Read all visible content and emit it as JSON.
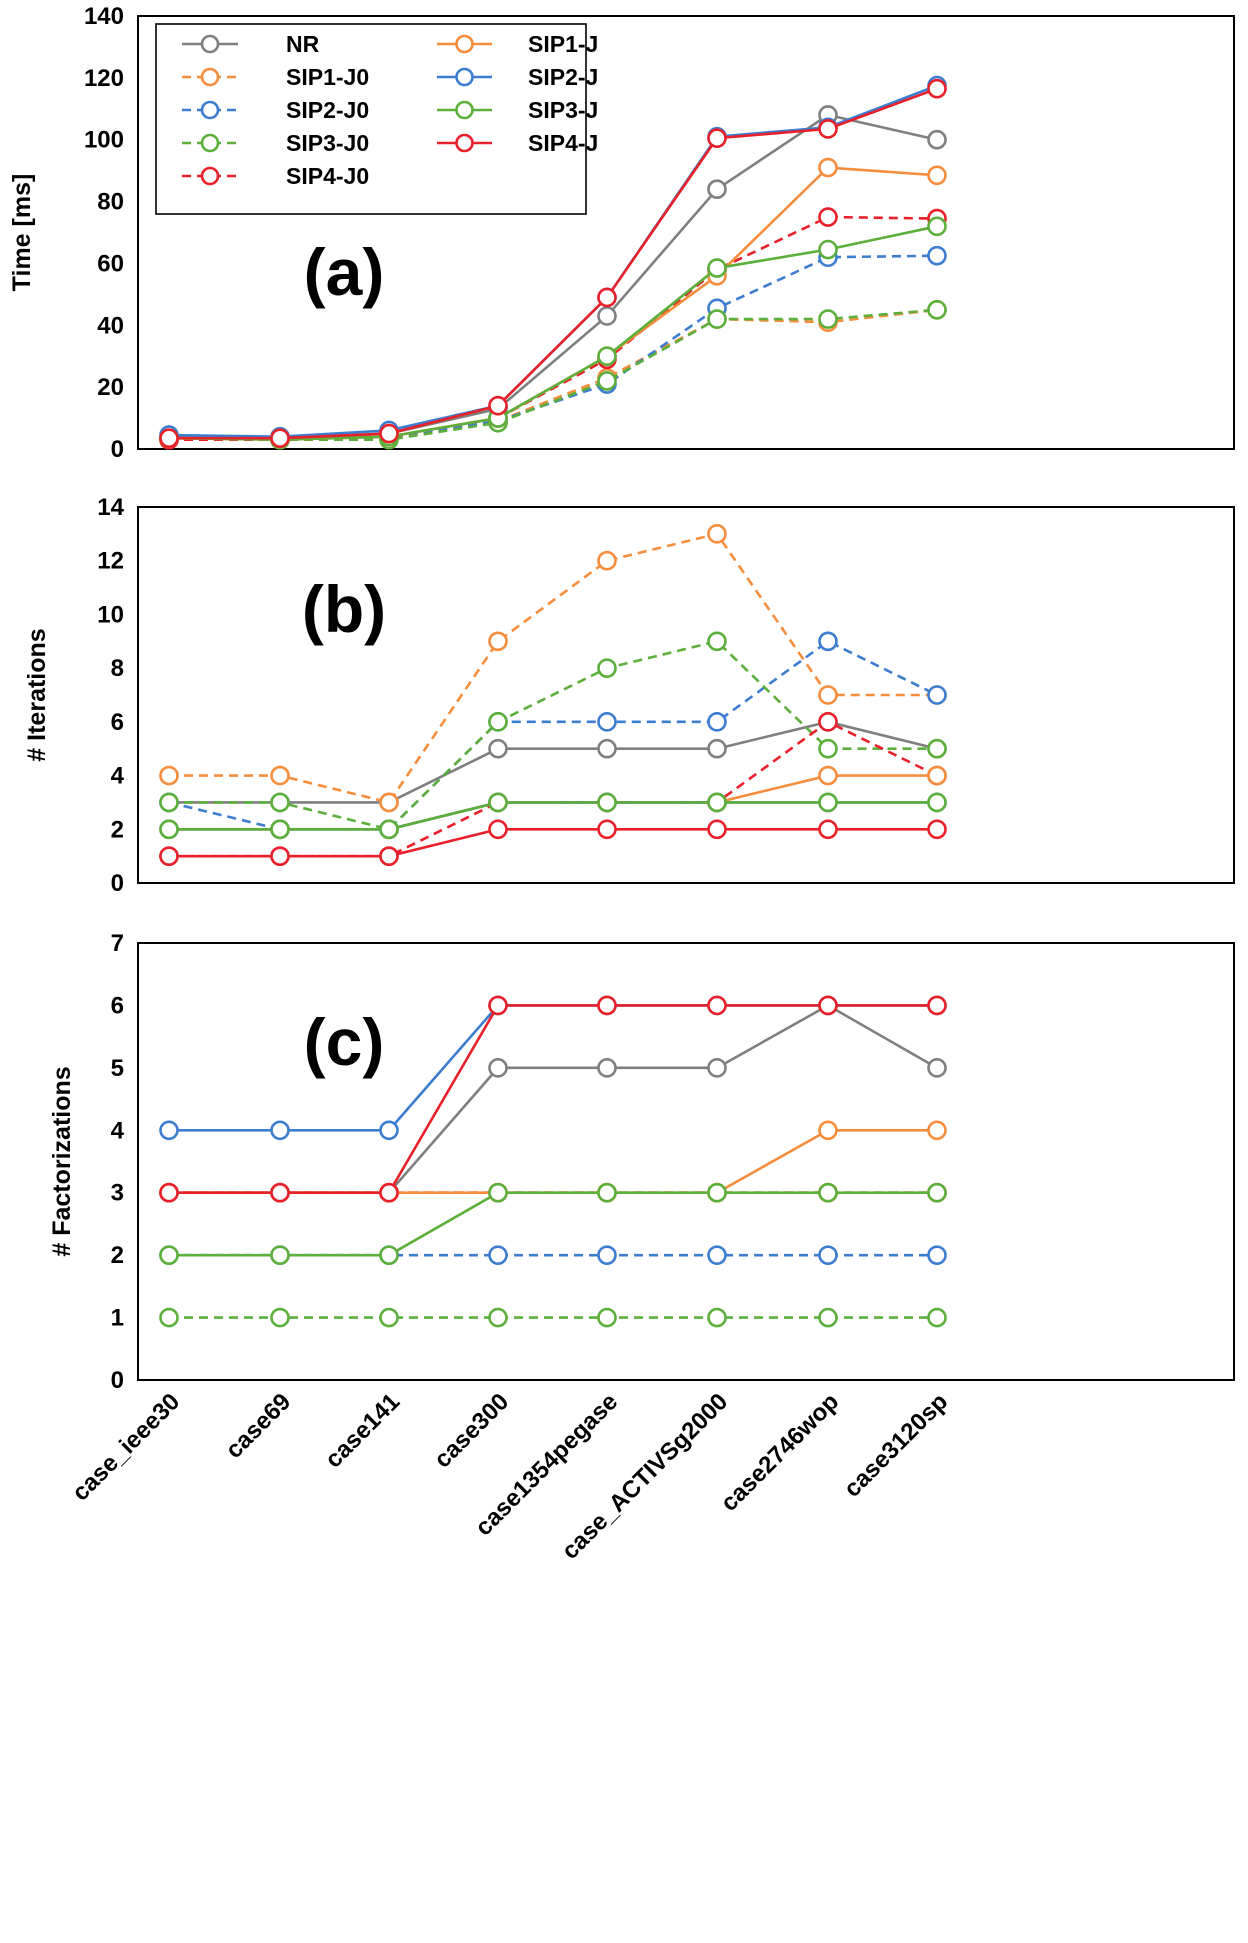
{
  "chart_data": {
    "type": "line",
    "categories": [
      "case_ieee30",
      "case69",
      "case141",
      "case300",
      "case1354pegase",
      "case_ACTIVSg2000",
      "case2746wop",
      "case3120sp"
    ],
    "series_styles": [
      {
        "name": "NR",
        "color": "#7f7f7f",
        "dashed": false
      },
      {
        "name": "SIP1-J0",
        "color": "#f58d3c",
        "dashed": true
      },
      {
        "name": "SIP2-J0",
        "color": "#3d7dd0",
        "dashed": true
      },
      {
        "name": "SIP3-J0",
        "color": "#5caf3b",
        "dashed": true
      },
      {
        "name": "SIP4-J0",
        "color": "#e8202a",
        "dashed": true
      },
      {
        "name": "SIP1-J",
        "color": "#f58d3c",
        "dashed": false
      },
      {
        "name": "SIP2-J",
        "color": "#3d7dd0",
        "dashed": false
      },
      {
        "name": "SIP3-J",
        "color": "#5caf3b",
        "dashed": false
      },
      {
        "name": "SIP4-J",
        "color": "#e8202a",
        "dashed": false
      }
    ],
    "legend": {
      "placement": "top-left",
      "left_column": [
        "NR",
        "SIP1-J0",
        "SIP2-J0",
        "SIP3-J0",
        "SIP4-J0"
      ],
      "right_column": [
        "SIP1-J",
        "SIP2-J",
        "SIP3-J",
        "SIP4-J"
      ]
    },
    "panels": [
      {
        "label": "(a)",
        "ylabel": "Time [ms]",
        "ylim": [
          0,
          140
        ],
        "yticks": [
          0,
          20,
          40,
          60,
          80,
          100,
          120,
          140
        ],
        "series": [
          {
            "name": "NR",
            "values": [
              4,
              3.5,
              5,
              13,
              43,
              84,
              108,
              100
            ]
          },
          {
            "name": "SIP1-J0",
            "values": [
              3,
              3,
              3.5,
              9,
              23,
              42,
              41,
              45
            ]
          },
          {
            "name": "SIP2-J0",
            "values": [
              3.5,
              3,
              4,
              9,
              21,
              45.5,
              62,
              62.5
            ]
          },
          {
            "name": "SIP3-J0",
            "values": [
              3,
              3,
              3,
              8.5,
              22,
              42,
              42,
              45
            ]
          },
          {
            "name": "SIP4-J0",
            "values": [
              3,
              3,
              4,
              10,
              29,
              58,
              75,
              74.5
            ]
          },
          {
            "name": "SIP1-J",
            "values": [
              3.5,
              3,
              4,
              10,
              30,
              56,
              91,
              88.5
            ]
          },
          {
            "name": "SIP2-J",
            "values": [
              4.5,
              4,
              6,
              14,
              49,
              101,
              104,
              117.5
            ]
          },
          {
            "name": "SIP3-J",
            "values": [
              3.5,
              3,
              4,
              10,
              30,
              58.5,
              64.5,
              72
            ]
          },
          {
            "name": "SIP4-J",
            "values": [
              3.5,
              3.5,
              5,
              14,
              49,
              100.5,
              103.5,
              116.5
            ]
          }
        ]
      },
      {
        "label": "(b)",
        "ylabel": "# Iterations",
        "ylim": [
          0,
          14
        ],
        "yticks": [
          0,
          2,
          4,
          6,
          8,
          10,
          12,
          14
        ],
        "series": [
          {
            "name": "NR",
            "values": [
              3,
              3,
              3,
              5,
              5,
              5,
              6,
              5
            ]
          },
          {
            "name": "SIP1-J0",
            "values": [
              4,
              4,
              3,
              9,
              12,
              13,
              7,
              7
            ]
          },
          {
            "name": "SIP2-J0",
            "values": [
              3,
              2,
              2,
              6,
              6,
              6,
              9,
              7
            ]
          },
          {
            "name": "SIP3-J0",
            "values": [
              3,
              3,
              2,
              6,
              8,
              9,
              5,
              5
            ]
          },
          {
            "name": "SIP4-J0",
            "values": [
              1,
              1,
              1,
              3,
              3,
              3,
              6,
              4
            ]
          },
          {
            "name": "SIP1-J",
            "values": [
              2,
              2,
              2,
              3,
              3,
              3,
              4,
              4
            ]
          },
          {
            "name": "SIP2-J",
            "values": [
              2,
              2,
              2,
              3,
              3,
              3,
              3,
              3
            ]
          },
          {
            "name": "SIP3-J",
            "values": [
              2,
              2,
              2,
              3,
              3,
              3,
              3,
              3
            ]
          },
          {
            "name": "SIP4-J",
            "values": [
              1,
              1,
              1,
              2,
              2,
              2,
              2,
              2
            ]
          }
        ]
      },
      {
        "label": "(c)",
        "ylabel": "# Factorizations",
        "ylim": [
          0,
          7
        ],
        "yticks": [
          0,
          1,
          2,
          3,
          4,
          5,
          6,
          7
        ],
        "series": [
          {
            "name": "NR",
            "values": [
              3,
              3,
              3,
              5,
              5,
              5,
              6,
              5
            ]
          },
          {
            "name": "SIP1-J0",
            "values": [
              3,
              3,
              3,
              3,
              3,
              3,
              3,
              3
            ]
          },
          {
            "name": "SIP2-J0",
            "values": [
              2,
              2,
              2,
              2,
              2,
              2,
              2,
              2
            ]
          },
          {
            "name": "SIP3-J0",
            "values": [
              1,
              1,
              1,
              1,
              1,
              1,
              1,
              1
            ]
          },
          {
            "name": "SIP4-J0",
            "values": [
              3,
              3,
              3,
              3,
              3,
              3,
              3,
              3
            ]
          },
          {
            "name": "SIP1-J",
            "values": [
              3,
              3,
              3,
              3,
              3,
              3,
              4,
              4
            ]
          },
          {
            "name": "SIP2-J",
            "values": [
              4,
              4,
              4,
              6,
              6,
              6,
              6,
              6
            ]
          },
          {
            "name": "SIP3-J",
            "values": [
              2,
              2,
              2,
              3,
              3,
              3,
              3,
              3
            ]
          },
          {
            "name": "SIP4-J",
            "values": [
              3,
              3,
              3,
              6,
              6,
              6,
              6,
              6
            ]
          }
        ]
      }
    ]
  }
}
